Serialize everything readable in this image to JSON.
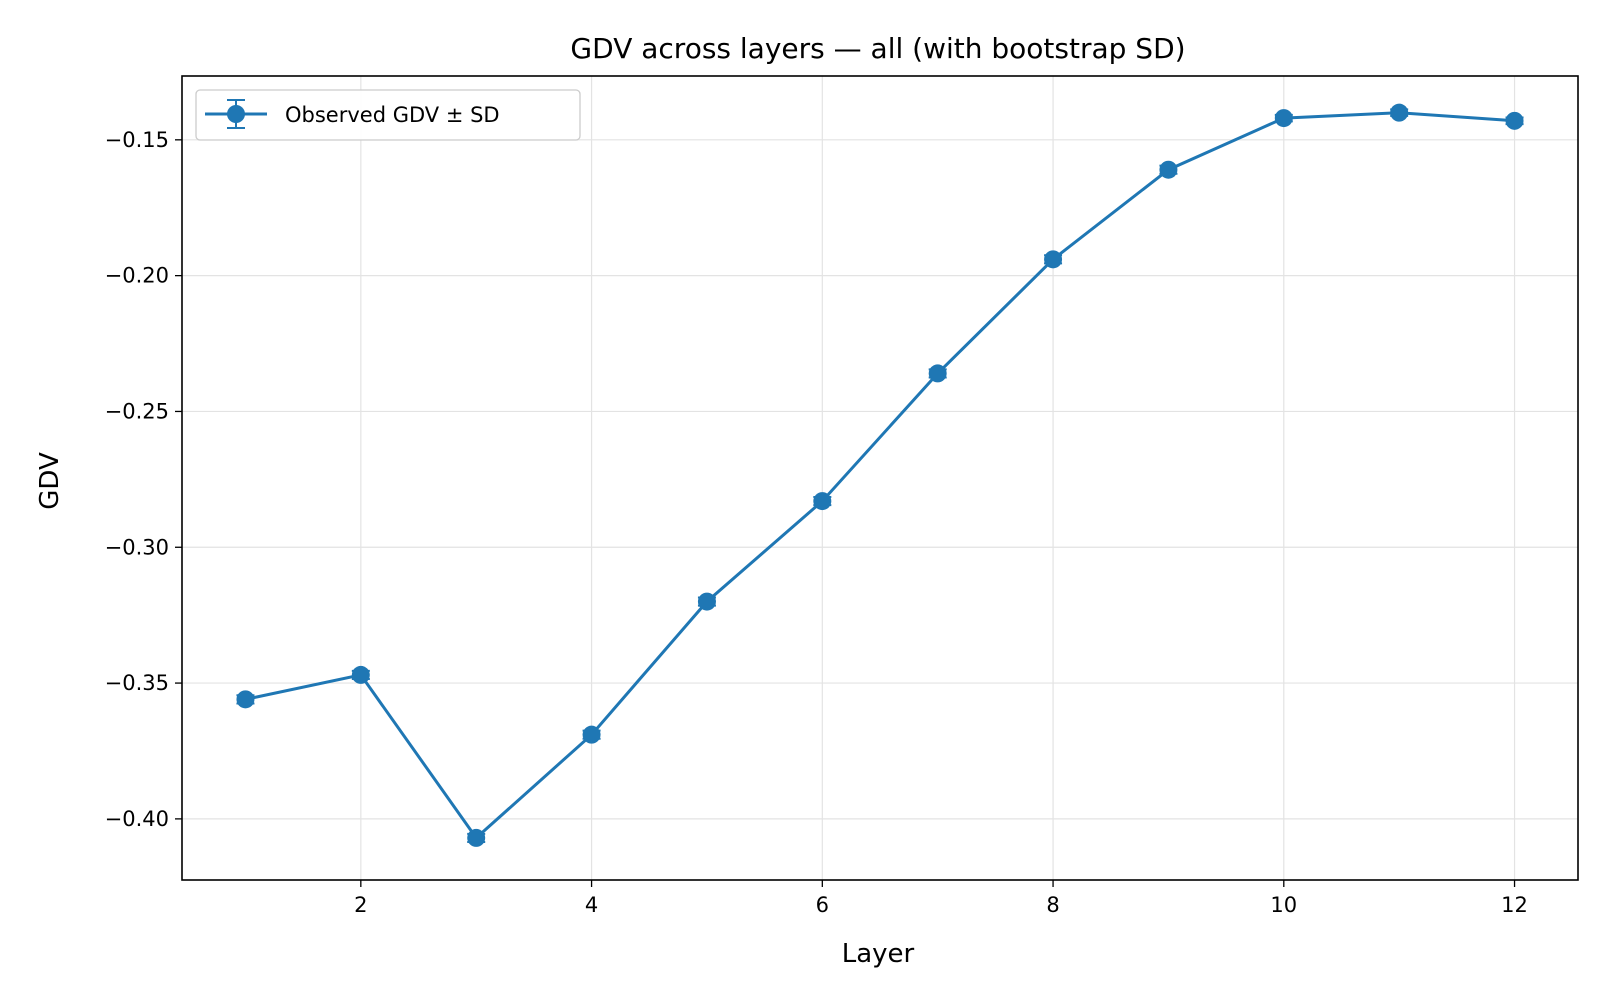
{
  "chart_data": {
    "type": "line",
    "title": "GDV across layers — all (with bootstrap SD)",
    "xlabel": "Layer",
    "ylabel": "GDV",
    "xlim": [
      0.45,
      12.55
    ],
    "ylim": [
      -0.4225,
      -0.1265
    ],
    "xticks": [
      2,
      4,
      6,
      8,
      10,
      12
    ],
    "xtick_labels": [
      "2",
      "4",
      "6",
      "8",
      "10",
      "12"
    ],
    "yticks": [
      -0.4,
      -0.35,
      -0.3,
      -0.25,
      -0.2,
      -0.15
    ],
    "ytick_labels": [
      "−0.40",
      "−0.35",
      "−0.30",
      "−0.25",
      "−0.20",
      "−0.15"
    ],
    "grid": true,
    "legend_position": "top-left",
    "series": [
      {
        "name": "Observed GDV ± SD",
        "color": "#1f77b4",
        "marker": "circle",
        "x": [
          1,
          2,
          3,
          4,
          5,
          6,
          7,
          8,
          9,
          10,
          11,
          12
        ],
        "y": [
          -0.356,
          -0.347,
          -0.407,
          -0.369,
          -0.32,
          -0.283,
          -0.236,
          -0.194,
          -0.161,
          -0.142,
          -0.14,
          -0.143
        ],
        "sd": [
          0.0015,
          0.0015,
          0.0015,
          0.0015,
          0.0015,
          0.0015,
          0.0015,
          0.0015,
          0.0015,
          0.0012,
          0.0012,
          0.0012
        ]
      }
    ]
  }
}
